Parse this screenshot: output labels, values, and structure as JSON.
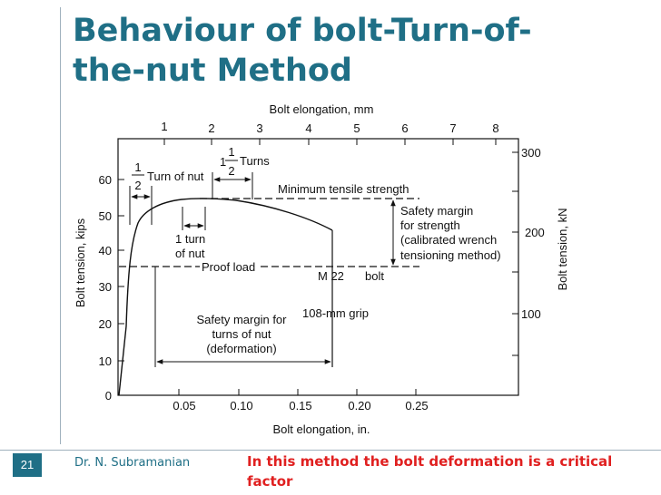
{
  "slide": {
    "title_line1": "Behaviour of bolt-Turn-of-",
    "title_line2": "the-nut Method",
    "number": "21",
    "author": "Dr. N. Subramanian",
    "note": "In this method the bolt deformation is a critical factor"
  },
  "figure": {
    "top_axis_label": "Bolt elongation, mm",
    "top_ticks": [
      "1",
      "2",
      "3",
      "4",
      "5",
      "6",
      "7",
      "8"
    ],
    "bottom_axis_label": "Bolt elongation, in.",
    "bottom_ticks": [
      "0.05",
      "0.10",
      "0.15",
      "0.20",
      "0.25"
    ],
    "left_axis_label": "Bolt tension, kips",
    "left_ticks": [
      "0",
      "10",
      "20",
      "30",
      "40",
      "50",
      "60"
    ],
    "right_axis_label": "Bolt tension, kN",
    "right_ticks": [
      "100",
      "200",
      "300"
    ],
    "annotations": {
      "half_num": "1",
      "half_den": "2",
      "turn_of_nut": "Turn of nut",
      "one_half_whole": "1",
      "one_half_num": "1",
      "one_half_den": "2",
      "turns": "Turns",
      "min_tensile": "Minimum tensile strength",
      "one_turn_l1": "1 turn",
      "one_turn_l2": "of nut",
      "proof_load": "Proof load",
      "bolt_m22": "M 22",
      "bolt_word": "bolt",
      "grip": "108-mm grip",
      "sm_strength_l1": "Safety margin",
      "sm_strength_l2": "for strength",
      "sm_strength_l3": "(calibrated wrench",
      "sm_strength_l4": "tensioning method)",
      "sm_turns_l1": "Safety margin for",
      "sm_turns_l2": "turns of nut",
      "sm_turns_l3": "(deformation)"
    }
  }
}
